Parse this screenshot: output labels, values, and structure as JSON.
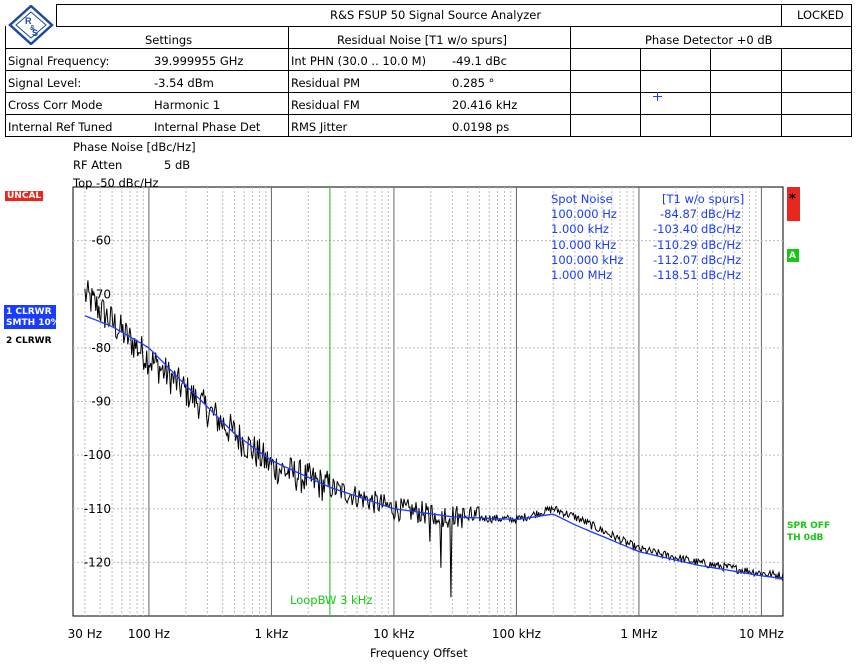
{
  "header": {
    "title": "R&S FSUP 50 Signal Source Analyzer",
    "status": "LOCKED",
    "logo": "R&S"
  },
  "settings": {
    "heading": "Settings",
    "rows": [
      {
        "label": "Signal Frequency:",
        "value": "39.999955 GHz"
      },
      {
        "label": "Signal Level:",
        "value": "-3.54 dBm"
      },
      {
        "label": "Cross Corr Mode",
        "value": "Harmonic 1"
      },
      {
        "label": "Internal Ref Tuned",
        "value": "Internal Phase Det"
      }
    ]
  },
  "residual": {
    "heading": "Residual Noise [T1 w/o spurs]",
    "rows": [
      {
        "label": "Int PHN (30.0  .. 10.0 M)",
        "value": "-49.1 dBc"
      },
      {
        "label": "Residual PM",
        "value": "0.285 °"
      },
      {
        "label": "Residual FM",
        "value": "20.416 kHz"
      },
      {
        "label": "RMS Jitter",
        "value": "0.0198 ps"
      }
    ]
  },
  "phase_detector": {
    "heading": "Phase Detector +0 dB"
  },
  "trace_info": {
    "phase_noise": "Phase Noise [dBc/Hz]",
    "rf_atten_label": "RF Atten",
    "rf_atten_value": "5 dB",
    "top": "Top -50 dBc/Hz"
  },
  "side_tags": {
    "uncal": "UNCAL",
    "trace1_line1": "1 CLRWR",
    "trace1_line2": "SMTH 10%",
    "trace2": "2 CLRWR",
    "star": "*",
    "a_marker": "A",
    "spr_off": "SPR OFF",
    "th": "TH 0dB"
  },
  "spot_noise": {
    "heading": "Spot Noise",
    "heading2": "[T1 w/o spurs]",
    "rows": [
      {
        "freq": "100.000 Hz",
        "value": "-84.87 dBc/Hz"
      },
      {
        "freq": "1.000 kHz",
        "value": "-103.40 dBc/Hz"
      },
      {
        "freq": "10.000 kHz",
        "value": "-110.29 dBc/Hz"
      },
      {
        "freq": "100.000 kHz",
        "value": "-112.07 dBc/Hz"
      },
      {
        "freq": "1.000 MHz",
        "value": "-118.51 dBc/Hz"
      }
    ]
  },
  "loop_bw": "LoopBW 3 kHz",
  "colors": {
    "trace_raw": "#000000",
    "trace_smooth": "#1a3cff",
    "text_blue": "#1a3cff",
    "green": "#14c814",
    "red": "#e8281e"
  },
  "chart_data": {
    "type": "line",
    "title": "",
    "xlabel": "Frequency Offset",
    "ylabel": "",
    "xscale": "log",
    "xlim": [
      24,
      15000000
    ],
    "ylim": [
      -130,
      -50
    ],
    "grid": true,
    "x_tick_labels": [
      "30 Hz",
      "100 Hz",
      "1 kHz",
      "10 kHz",
      "100 kHz",
      "1 MHz",
      "10 MHz"
    ],
    "x_ticks": [
      30,
      100,
      1000,
      10000,
      100000,
      1000000,
      10000000
    ],
    "y_ticks": [
      -60,
      -70,
      -80,
      -90,
      -100,
      -110,
      -120
    ],
    "loop_bw_hz": 3000,
    "series": [
      {
        "x": [
          30,
          60,
          100,
          200,
          500,
          1000,
          3000,
          10000,
          30000,
          100000,
          200000,
          300000,
          1000000,
          3000000,
          10000000,
          15000000
        ],
        "values": [
          -70,
          -77,
          -82,
          -88,
          -96,
          -102,
          -106,
          -110,
          -111.5,
          -112,
          -110,
          -111.5,
          -117.5,
          -120,
          -122,
          -122.5
        ]
      },
      {
        "x": [
          30,
          50,
          100,
          200,
          500,
          1000,
          3000,
          10000,
          30000,
          100000,
          200000,
          300000,
          1000000,
          3000000,
          10000000,
          15000000
        ],
        "values": [
          -74,
          -76,
          -80,
          -87,
          -96,
          -101,
          -106,
          -110,
          -111.5,
          -112,
          -111,
          -113,
          -118,
          -120.5,
          -122.5,
          -123
        ]
      }
    ]
  }
}
